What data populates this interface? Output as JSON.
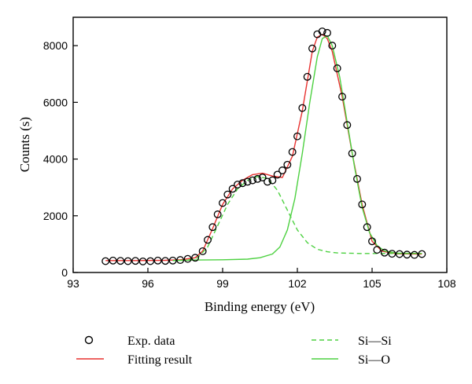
{
  "chart_data": {
    "type": "scatter",
    "title": "",
    "xlabel": "Binding energy (eV)",
    "ylabel": "Counts (s)",
    "xlim": [
      93,
      108
    ],
    "ylim": [
      0,
      9000
    ],
    "xticks": [
      "93",
      "96",
      "99",
      "102",
      "105",
      "108"
    ],
    "yticks": [
      "0",
      "2000",
      "4000",
      "6000",
      "8000"
    ],
    "grid": false,
    "legend_placement": "below",
    "series": [
      {
        "name": "Exp. data",
        "style": "open-circle",
        "color": "#000000",
        "x": [
          94.3,
          94.6,
          94.9,
          95.2,
          95.5,
          95.8,
          96.1,
          96.4,
          96.7,
          97.0,
          97.3,
          97.6,
          97.9,
          98.2,
          98.4,
          98.6,
          98.8,
          99.0,
          99.2,
          99.4,
          99.6,
          99.8,
          100.0,
          100.2,
          100.4,
          100.6,
          100.8,
          101.0,
          101.2,
          101.4,
          101.6,
          101.8,
          102.0,
          102.2,
          102.4,
          102.6,
          102.8,
          103.0,
          103.2,
          103.4,
          103.6,
          103.8,
          104.0,
          104.2,
          104.4,
          104.6,
          104.8,
          105.0,
          105.2,
          105.5,
          105.8,
          106.1,
          106.4,
          106.7,
          107.0
        ],
        "y": [
          400,
          420,
          410,
          400,
          410,
          390,
          400,
          420,
          410,
          420,
          440,
          480,
          520,
          750,
          1150,
          1600,
          2050,
          2450,
          2750,
          2950,
          3100,
          3150,
          3200,
          3250,
          3300,
          3350,
          3200,
          3250,
          3450,
          3600,
          3800,
          4250,
          4800,
          5800,
          6900,
          7900,
          8400,
          8500,
          8450,
          8000,
          7200,
          6200,
          5200,
          4200,
          3300,
          2400,
          1600,
          1100,
          800,
          700,
          660,
          650,
          630,
          620,
          650
        ]
      },
      {
        "name": "Fitting result",
        "style": "line",
        "color": "#e8312f",
        "x": [
          94.3,
          95.5,
          96.7,
          97.3,
          97.9,
          98.2,
          98.6,
          99.0,
          99.4,
          99.8,
          100.2,
          100.6,
          101.0,
          101.4,
          101.8,
          102.2,
          102.6,
          102.8,
          103.0,
          103.2,
          103.4,
          103.8,
          104.2,
          104.6,
          105.0,
          105.4,
          106.0,
          107.0
        ],
        "y": [
          420,
          420,
          430,
          450,
          520,
          760,
          1550,
          2400,
          2950,
          3250,
          3450,
          3500,
          3400,
          3350,
          4100,
          5700,
          7800,
          8300,
          8400,
          8250,
          7800,
          6200,
          4200,
          2400,
          1100,
          750,
          660,
          650
        ]
      },
      {
        "name": "Si—Si",
        "style": "dashed",
        "color": "#4dd141",
        "x": [
          97.0,
          97.6,
          98.0,
          98.4,
          98.8,
          99.2,
          99.6,
          100.0,
          100.4,
          100.8,
          101.2,
          101.6,
          102.0,
          102.4,
          102.8,
          103.2,
          103.6,
          104.0,
          104.5,
          105.0,
          106.0,
          107.0
        ],
        "y": [
          420,
          440,
          520,
          900,
          1650,
          2400,
          2950,
          3250,
          3380,
          3320,
          2900,
          2200,
          1500,
          1050,
          820,
          730,
          690,
          680,
          670,
          670,
          670,
          670
        ]
      },
      {
        "name": "Si—O",
        "style": "solid",
        "color": "#4dd141",
        "x": [
          97.0,
          98.0,
          99.0,
          100.0,
          100.5,
          101.0,
          101.3,
          101.6,
          101.9,
          102.2,
          102.5,
          102.8,
          103.0,
          103.2,
          103.4,
          103.7,
          104.0,
          104.3,
          104.6,
          104.9,
          105.2,
          105.5,
          106.0,
          107.0
        ],
        "y": [
          420,
          440,
          450,
          470,
          520,
          650,
          900,
          1500,
          2600,
          4200,
          6000,
          7600,
          8250,
          8350,
          8000,
          6900,
          5300,
          3700,
          2300,
          1400,
          950,
          760,
          680,
          670
        ]
      }
    ]
  }
}
